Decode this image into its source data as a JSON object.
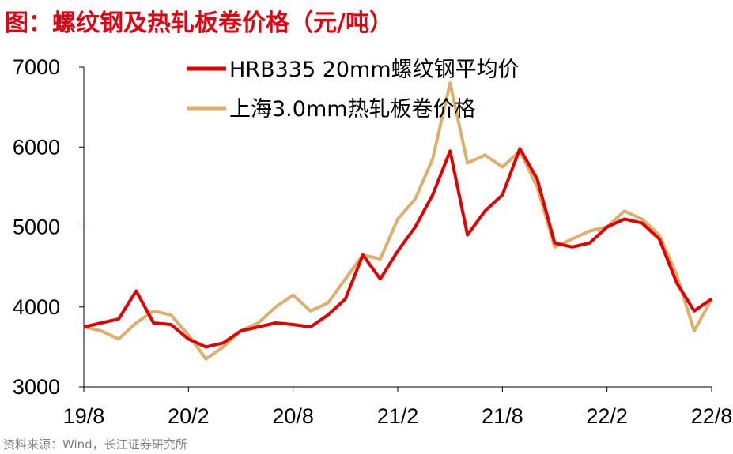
{
  "title": "图：螺纹钢及热轧板卷价格（元/吨）",
  "source": "资料来源：Wind，长江证券研究所",
  "colors": {
    "title": "#e3000f",
    "series_red": "#e00000",
    "series_gold": "#dcb06c"
  },
  "chart_data": {
    "type": "line",
    "title": "图：螺纹钢及热轧板卷价格（元/吨）",
    "xlabel": "",
    "ylabel": "",
    "ylim": [
      3000,
      7000
    ],
    "xlim": [
      "2019-08",
      "2022-08"
    ],
    "yticks": [
      3000,
      4000,
      5000,
      6000,
      7000
    ],
    "xticks": [
      "19/8",
      "20/2",
      "20/8",
      "21/2",
      "21/8",
      "22/2",
      "22/8"
    ],
    "legend_position": "top",
    "grid": false,
    "series": [
      {
        "name": "HRB335 20mm螺纹钢平均价",
        "color": "#e00000",
        "x": [
          "2019-08",
          "2019-09",
          "2019-10",
          "2019-11",
          "2019-12",
          "2020-01",
          "2020-02",
          "2020-03",
          "2020-04",
          "2020-05",
          "2020-06",
          "2020-07",
          "2020-08",
          "2020-09",
          "2020-10",
          "2020-11",
          "2020-12",
          "2021-01",
          "2021-02",
          "2021-03",
          "2021-04",
          "2021-05",
          "2021-06",
          "2021-07",
          "2021-08",
          "2021-09",
          "2021-10",
          "2021-11",
          "2021-12",
          "2022-01",
          "2022-02",
          "2022-03",
          "2022-04",
          "2022-05",
          "2022-06",
          "2022-07",
          "2022-08"
        ],
        "values": [
          3750,
          3800,
          3850,
          4200,
          3800,
          3780,
          3600,
          3500,
          3550,
          3700,
          3750,
          3800,
          3780,
          3750,
          3900,
          4100,
          4650,
          4350,
          4700,
          5000,
          5400,
          5950,
          4900,
          5200,
          5400,
          5980,
          5600,
          4800,
          4750,
          4800,
          5000,
          5100,
          5050,
          4850,
          4300,
          3950,
          4100
        ]
      },
      {
        "name": "上海3.0mm热轧板卷价格",
        "color": "#dcb06c",
        "x": [
          "2019-08",
          "2019-09",
          "2019-10",
          "2019-11",
          "2019-12",
          "2020-01",
          "2020-02",
          "2020-03",
          "2020-04",
          "2020-05",
          "2020-06",
          "2020-07",
          "2020-08",
          "2020-09",
          "2020-10",
          "2020-11",
          "2020-12",
          "2021-01",
          "2021-02",
          "2021-03",
          "2021-04",
          "2021-05",
          "2021-06",
          "2021-07",
          "2021-08",
          "2021-09",
          "2021-10",
          "2021-11",
          "2021-12",
          "2022-01",
          "2022-02",
          "2022-03",
          "2022-04",
          "2022-05",
          "2022-06",
          "2022-07",
          "2022-08"
        ],
        "values": [
          3750,
          3700,
          3600,
          3800,
          3950,
          3900,
          3650,
          3350,
          3500,
          3700,
          3800,
          4000,
          4150,
          3950,
          4050,
          4350,
          4650,
          4600,
          5100,
          5350,
          5850,
          6800,
          5800,
          5900,
          5750,
          5950,
          5500,
          4750,
          4850,
          4950,
          5000,
          5200,
          5100,
          4900,
          4400,
          3700,
          4100
        ]
      }
    ]
  }
}
